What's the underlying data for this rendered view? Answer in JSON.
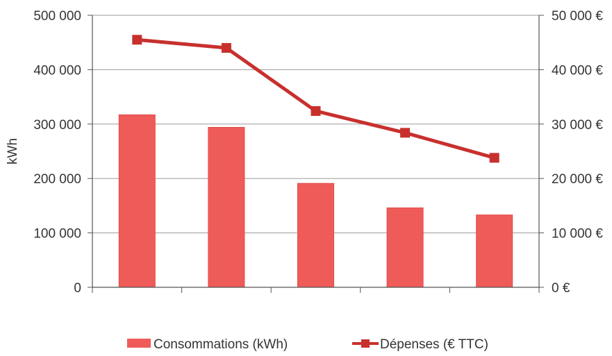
{
  "chart_data": {
    "type": "bar",
    "categories": [
      "",
      "",
      "",
      "",
      ""
    ],
    "ylabel": "kWh",
    "ylim": [
      0,
      500000
    ],
    "y2lim": [
      0,
      50000
    ],
    "grid": true,
    "legend_position": "bottom",
    "y_ticks": [
      {
        "value": 0,
        "label": "0"
      },
      {
        "value": 100000,
        "label": "100 000"
      },
      {
        "value": 200000,
        "label": "200 000"
      },
      {
        "value": 300000,
        "label": "300 000"
      },
      {
        "value": 400000,
        "label": "400 000"
      },
      {
        "value": 500000,
        "label": "500 000"
      }
    ],
    "y2_ticks": [
      {
        "value": 0,
        "label": "0 €"
      },
      {
        "value": 10000,
        "label": "10 000 €"
      },
      {
        "value": 20000,
        "label": "20 000 €"
      },
      {
        "value": 30000,
        "label": "30 000 €"
      },
      {
        "value": 40000,
        "label": "40 000 €"
      },
      {
        "value": 50000,
        "label": "50 000 €"
      }
    ],
    "series": [
      {
        "name": "Consommations (kWh)",
        "type": "bar",
        "axis": "left",
        "color": "#ef5b58",
        "values": [
          317000,
          294000,
          191000,
          146000,
          133000
        ]
      },
      {
        "name": "Dépenses (€ TTC)",
        "type": "line",
        "axis": "right",
        "color": "#c8302e",
        "values": [
          45500,
          44000,
          32400,
          28400,
          23800
        ]
      }
    ]
  }
}
